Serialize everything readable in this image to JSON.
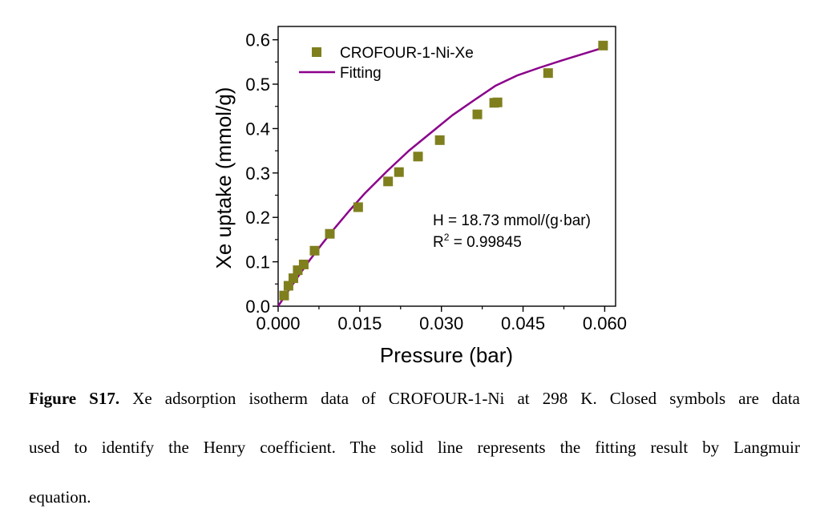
{
  "chart_data": {
    "type": "scatter",
    "xlabel": "Pressure (bar)",
    "ylabel": "Xe uptake (mmol/g)",
    "xlim": [
      0.0,
      0.062
    ],
    "ylim": [
      0.0,
      0.63
    ],
    "xticks": [
      "0.000",
      "0.015",
      "0.030",
      "0.045",
      "0.060"
    ],
    "xtick_values": [
      0.0,
      0.015,
      0.03,
      0.045,
      0.06
    ],
    "yticks": [
      "0.0",
      "0.1",
      "0.2",
      "0.3",
      "0.4",
      "0.5",
      "0.6"
    ],
    "ytick_values": [
      0.0,
      0.1,
      0.2,
      0.3,
      0.4,
      0.5,
      0.6
    ],
    "grid": false,
    "legend_position": "top-left",
    "series": [
      {
        "name": "CROFOUR-1-Ni-Xe",
        "kind": "scatter",
        "marker": "square",
        "color": "#7f7f1e",
        "x": [
          0.0011,
          0.0019,
          0.0028,
          0.0036,
          0.0047,
          0.0067,
          0.0095,
          0.0147,
          0.0202,
          0.0222,
          0.0257,
          0.0297,
          0.0366,
          0.0397,
          0.0403,
          0.0496,
          0.0597
        ],
        "y": [
          0.024,
          0.046,
          0.063,
          0.081,
          0.094,
          0.125,
          0.163,
          0.223,
          0.281,
          0.302,
          0.337,
          0.374,
          0.432,
          0.458,
          0.459,
          0.525,
          0.587
        ]
      },
      {
        "name": "Fitting",
        "kind": "line",
        "color": "#8b008b",
        "x": [
          0.0,
          0.002,
          0.004,
          0.006,
          0.008,
          0.01,
          0.013,
          0.016,
          0.02,
          0.024,
          0.028,
          0.032,
          0.036,
          0.04,
          0.044,
          0.048,
          0.052,
          0.056,
          0.0595
        ],
        "y": [
          0.0,
          0.037,
          0.073,
          0.107,
          0.139,
          0.17,
          0.214,
          0.255,
          0.304,
          0.35,
          0.39,
          0.43,
          0.464,
          0.497,
          0.52,
          0.537,
          0.553,
          0.568,
          0.581
        ]
      }
    ],
    "annotations": {
      "henry": "H = 18.73 mmol/(g·bar)",
      "r2_label": "R",
      "r2_sup": "2",
      "r2_value": " = 0.99845"
    }
  },
  "caption": {
    "label": "Figure S17.",
    "line1": " Xe adsorption isotherm data of CROFOUR-1-Ni at 298 K. Closed symbols are data",
    "line2": "used to identify the Henry coefficient. The solid line represents the fitting result by Langmuir",
    "line3": "equation."
  }
}
